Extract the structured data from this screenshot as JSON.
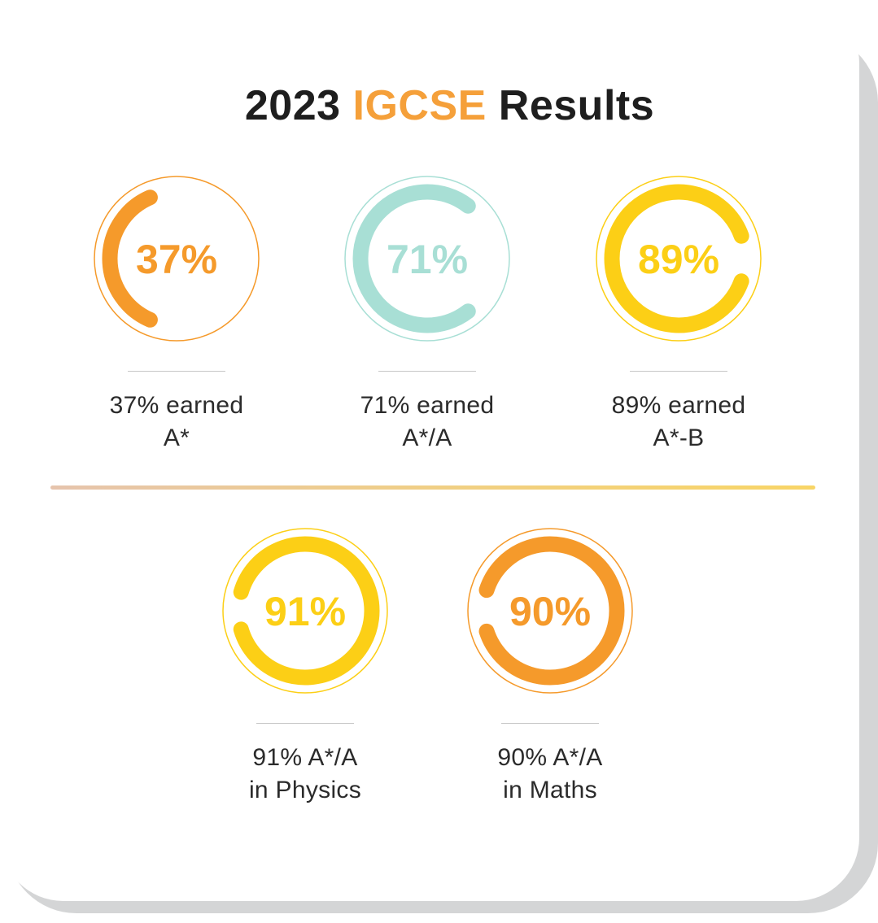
{
  "title": {
    "prefix": "2023",
    "accent": "IGCSE",
    "suffix": "Results"
  },
  "colors": {
    "orange": "#f59a2b",
    "teal": "#a8dfd5",
    "yellow": "#fccf16",
    "text": "#1e1e1e",
    "title_accent": "#f5a03a"
  },
  "chart_data": [
    {
      "type": "pie",
      "name": "stat-a-star",
      "value": 37,
      "label": "37%",
      "caption": [
        "37% earned",
        "A*"
      ],
      "color": "#f59a2b",
      "orientation": "open-right"
    },
    {
      "type": "pie",
      "name": "stat-a-star-a",
      "value": 71,
      "label": "71%",
      "caption": [
        "71% earned",
        "A*/A"
      ],
      "color": "#a8dfd5",
      "orientation": "open-right"
    },
    {
      "type": "pie",
      "name": "stat-a-star-b",
      "value": 89,
      "label": "89%",
      "caption": [
        "89% earned",
        "A*-B"
      ],
      "color": "#fccf16",
      "orientation": "open-right"
    },
    {
      "type": "pie",
      "name": "stat-physics",
      "value": 91,
      "label": "91%",
      "caption": [
        "91% A*/A",
        "in Physics"
      ],
      "color": "#fccf16",
      "orientation": "open-left"
    },
    {
      "type": "pie",
      "name": "stat-maths",
      "value": 90,
      "label": "90%",
      "caption": [
        "90% A*/A",
        "in Maths"
      ],
      "color": "#f59a2b",
      "orientation": "open-left"
    }
  ]
}
